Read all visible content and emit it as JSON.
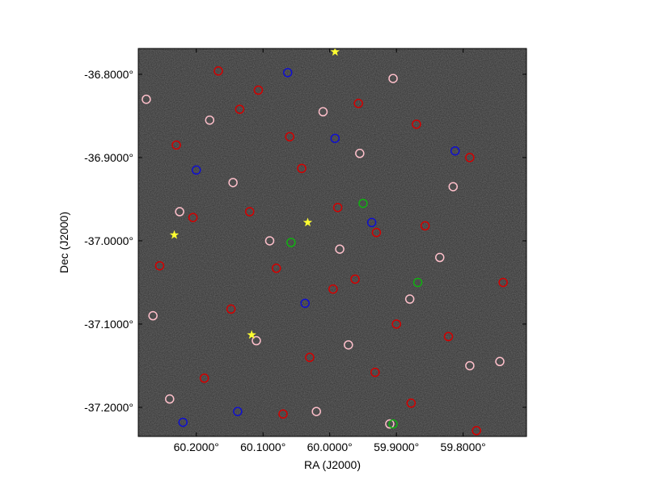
{
  "chart_data": {
    "type": "scatter",
    "xlabel": "RA (J2000)",
    "ylabel": "Dec (J2000)",
    "xlim": [
      60.287,
      59.705
    ],
    "ylim": [
      -37.235,
      -36.769
    ],
    "xticks": [
      {
        "value": 60.2,
        "label": "60.2000°"
      },
      {
        "value": 60.1,
        "label": "60.1000°"
      },
      {
        "value": 60.0,
        "label": "60.0000°"
      },
      {
        "value": 59.9,
        "label": "59.9000°"
      },
      {
        "value": 59.8,
        "label": "59.8000°"
      }
    ],
    "yticks": [
      {
        "value": -36.8,
        "label": "-36.8000°"
      },
      {
        "value": -36.9,
        "label": "-36.9000°"
      },
      {
        "value": -37.0,
        "label": "-37.0000°"
      },
      {
        "value": -37.1,
        "label": "-37.1000°"
      },
      {
        "value": -37.2,
        "label": "-37.2000°"
      }
    ],
    "series": [
      {
        "color": "#d40000",
        "marker": "circle",
        "x": [
          60.167,
          60.107,
          60.135,
          60.06,
          60.23,
          60.042,
          59.988,
          60.12,
          60.205,
          59.93,
          59.857,
          60.08,
          59.962,
          59.995,
          60.148,
          59.9,
          59.822,
          60.03,
          59.932,
          60.188,
          59.878,
          60.07,
          59.78,
          59.957,
          59.79,
          60.255,
          59.74,
          59.87
        ],
        "values": [
          -36.796,
          -36.819,
          -36.842,
          -36.875,
          -36.885,
          -36.913,
          -36.96,
          -36.965,
          -36.972,
          -36.99,
          -36.982,
          -37.033,
          -37.046,
          -37.058,
          -37.082,
          -37.1,
          -37.115,
          -37.14,
          -37.158,
          -37.165,
          -37.195,
          -37.208,
          -37.228,
          -36.835,
          -36.9,
          -37.03,
          -37.05,
          -36.86
        ]
      },
      {
        "color": "#ffc0cb",
        "marker": "circle",
        "x": [
          60.275,
          60.18,
          60.01,
          59.905,
          59.815,
          60.225,
          60.09,
          59.985,
          59.88,
          60.265,
          60.11,
          59.972,
          59.79,
          60.24,
          60.02,
          59.91,
          59.745,
          60.145,
          59.955,
          59.835
        ],
        "values": [
          -36.83,
          -36.855,
          -36.845,
          -36.805,
          -36.935,
          -36.965,
          -37.0,
          -37.01,
          -37.07,
          -37.09,
          -37.12,
          -37.125,
          -37.15,
          -37.19,
          -37.205,
          -37.22,
          -37.145,
          -36.93,
          -36.895,
          -37.02
        ]
      },
      {
        "color": "#1010d0",
        "marker": "circle",
        "x": [
          60.2,
          60.063,
          59.992,
          59.937,
          60.037,
          60.138,
          59.812,
          60.22
        ],
        "values": [
          -36.915,
          -36.798,
          -36.877,
          -36.978,
          -37.075,
          -37.205,
          -36.892,
          -37.218
        ]
      },
      {
        "color": "#10b010",
        "marker": "circle",
        "x": [
          59.95,
          60.058,
          59.905,
          59.868
        ],
        "values": [
          -36.955,
          -37.002,
          -37.22,
          -37.05
        ]
      },
      {
        "color": "#ffff30",
        "marker": "star",
        "x": [
          60.233,
          60.117,
          60.033,
          59.992
        ],
        "values": [
          -36.993,
          -37.113,
          -36.978,
          -36.773
        ]
      }
    ]
  }
}
